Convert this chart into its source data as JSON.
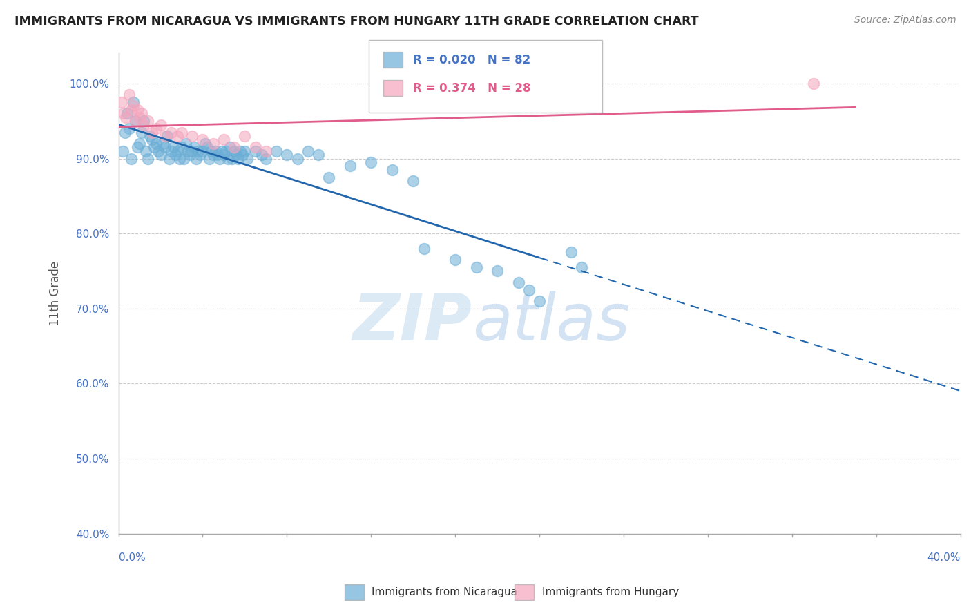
{
  "title": "IMMIGRANTS FROM NICARAGUA VS IMMIGRANTS FROM HUNGARY 11TH GRADE CORRELATION CHART",
  "source": "Source: ZipAtlas.com",
  "ylabel": "11th Grade",
  "R_blue": 0.02,
  "N_blue": 82,
  "R_pink": 0.374,
  "N_pink": 28,
  "blue_color": "#6baed6",
  "pink_color": "#f4a4bc",
  "blue_line_color": "#2166ac",
  "pink_line_color": "#e05c8a",
  "watermark_zip": "ZIP",
  "watermark_atlas": "atlas",
  "legend_blue_label": "Immigrants from Nicaragua",
  "legend_pink_label": "Immigrants from Hungary",
  "xmin": 0.0,
  "xmax": 40.0,
  "ymin": 40.0,
  "ymax": 104.0,
  "yticks": [
    40,
    50,
    60,
    70,
    80,
    90,
    100
  ],
  "blue_points_x": [
    0.2,
    0.3,
    0.4,
    0.5,
    0.6,
    0.7,
    0.8,
    0.9,
    1.0,
    1.1,
    1.2,
    1.3,
    1.4,
    1.5,
    1.6,
    1.7,
    1.8,
    1.9,
    2.0,
    2.1,
    2.2,
    2.3,
    2.4,
    2.5,
    2.6,
    2.7,
    2.8,
    2.9,
    3.0,
    3.1,
    3.2,
    3.3,
    3.4,
    3.5,
    3.6,
    3.7,
    3.8,
    3.9,
    4.0,
    4.1,
    4.2,
    4.3,
    4.4,
    4.5,
    4.6,
    4.7,
    4.8,
    4.9,
    5.0,
    5.1,
    5.2,
    5.3,
    5.4,
    5.5,
    5.6,
    5.7,
    5.8,
    5.9,
    6.0,
    6.1,
    6.5,
    6.8,
    7.0,
    7.5,
    8.0,
    8.5,
    9.0,
    9.5,
    10.0,
    11.0,
    12.0,
    13.0,
    14.0,
    14.5,
    16.0,
    17.0,
    18.0,
    19.0,
    19.5,
    20.0,
    21.5,
    22.0
  ],
  "blue_points_y": [
    91.0,
    93.5,
    96.0,
    94.0,
    90.0,
    97.5,
    95.0,
    91.5,
    92.0,
    93.5,
    95.0,
    91.0,
    90.0,
    93.0,
    92.5,
    91.5,
    92.0,
    91.0,
    90.5,
    92.0,
    91.5,
    93.0,
    90.0,
    91.0,
    91.5,
    90.5,
    91.0,
    90.0,
    91.5,
    90.0,
    92.0,
    91.0,
    90.5,
    91.0,
    91.5,
    90.0,
    91.0,
    90.5,
    91.0,
    92.0,
    91.5,
    90.0,
    91.0,
    90.5,
    91.0,
    90.5,
    90.0,
    91.0,
    90.5,
    91.0,
    90.0,
    91.5,
    90.0,
    91.0,
    90.5,
    90.0,
    91.0,
    90.5,
    91.0,
    90.0,
    91.0,
    90.5,
    90.0,
    91.0,
    90.5,
    90.0,
    91.0,
    90.5,
    87.5,
    89.0,
    89.5,
    88.5,
    87.0,
    78.0,
    76.5,
    75.5,
    75.0,
    73.5,
    72.5,
    71.0,
    77.5,
    75.5
  ],
  "pink_points_x": [
    0.15,
    0.25,
    0.35,
    0.5,
    0.6,
    0.7,
    0.8,
    0.9,
    1.0,
    1.1,
    1.2,
    1.4,
    1.6,
    1.8,
    2.0,
    2.2,
    2.5,
    2.8,
    3.0,
    3.5,
    4.0,
    4.5,
    5.0,
    5.5,
    6.0,
    6.5,
    7.0,
    33.0
  ],
  "pink_points_y": [
    97.5,
    96.0,
    95.5,
    98.5,
    96.5,
    97.0,
    95.0,
    96.5,
    95.5,
    96.0,
    94.5,
    95.0,
    93.5,
    94.0,
    94.5,
    93.0,
    93.5,
    93.0,
    93.5,
    93.0,
    92.5,
    92.0,
    92.5,
    91.5,
    93.0,
    91.5,
    91.0,
    100.0
  ]
}
